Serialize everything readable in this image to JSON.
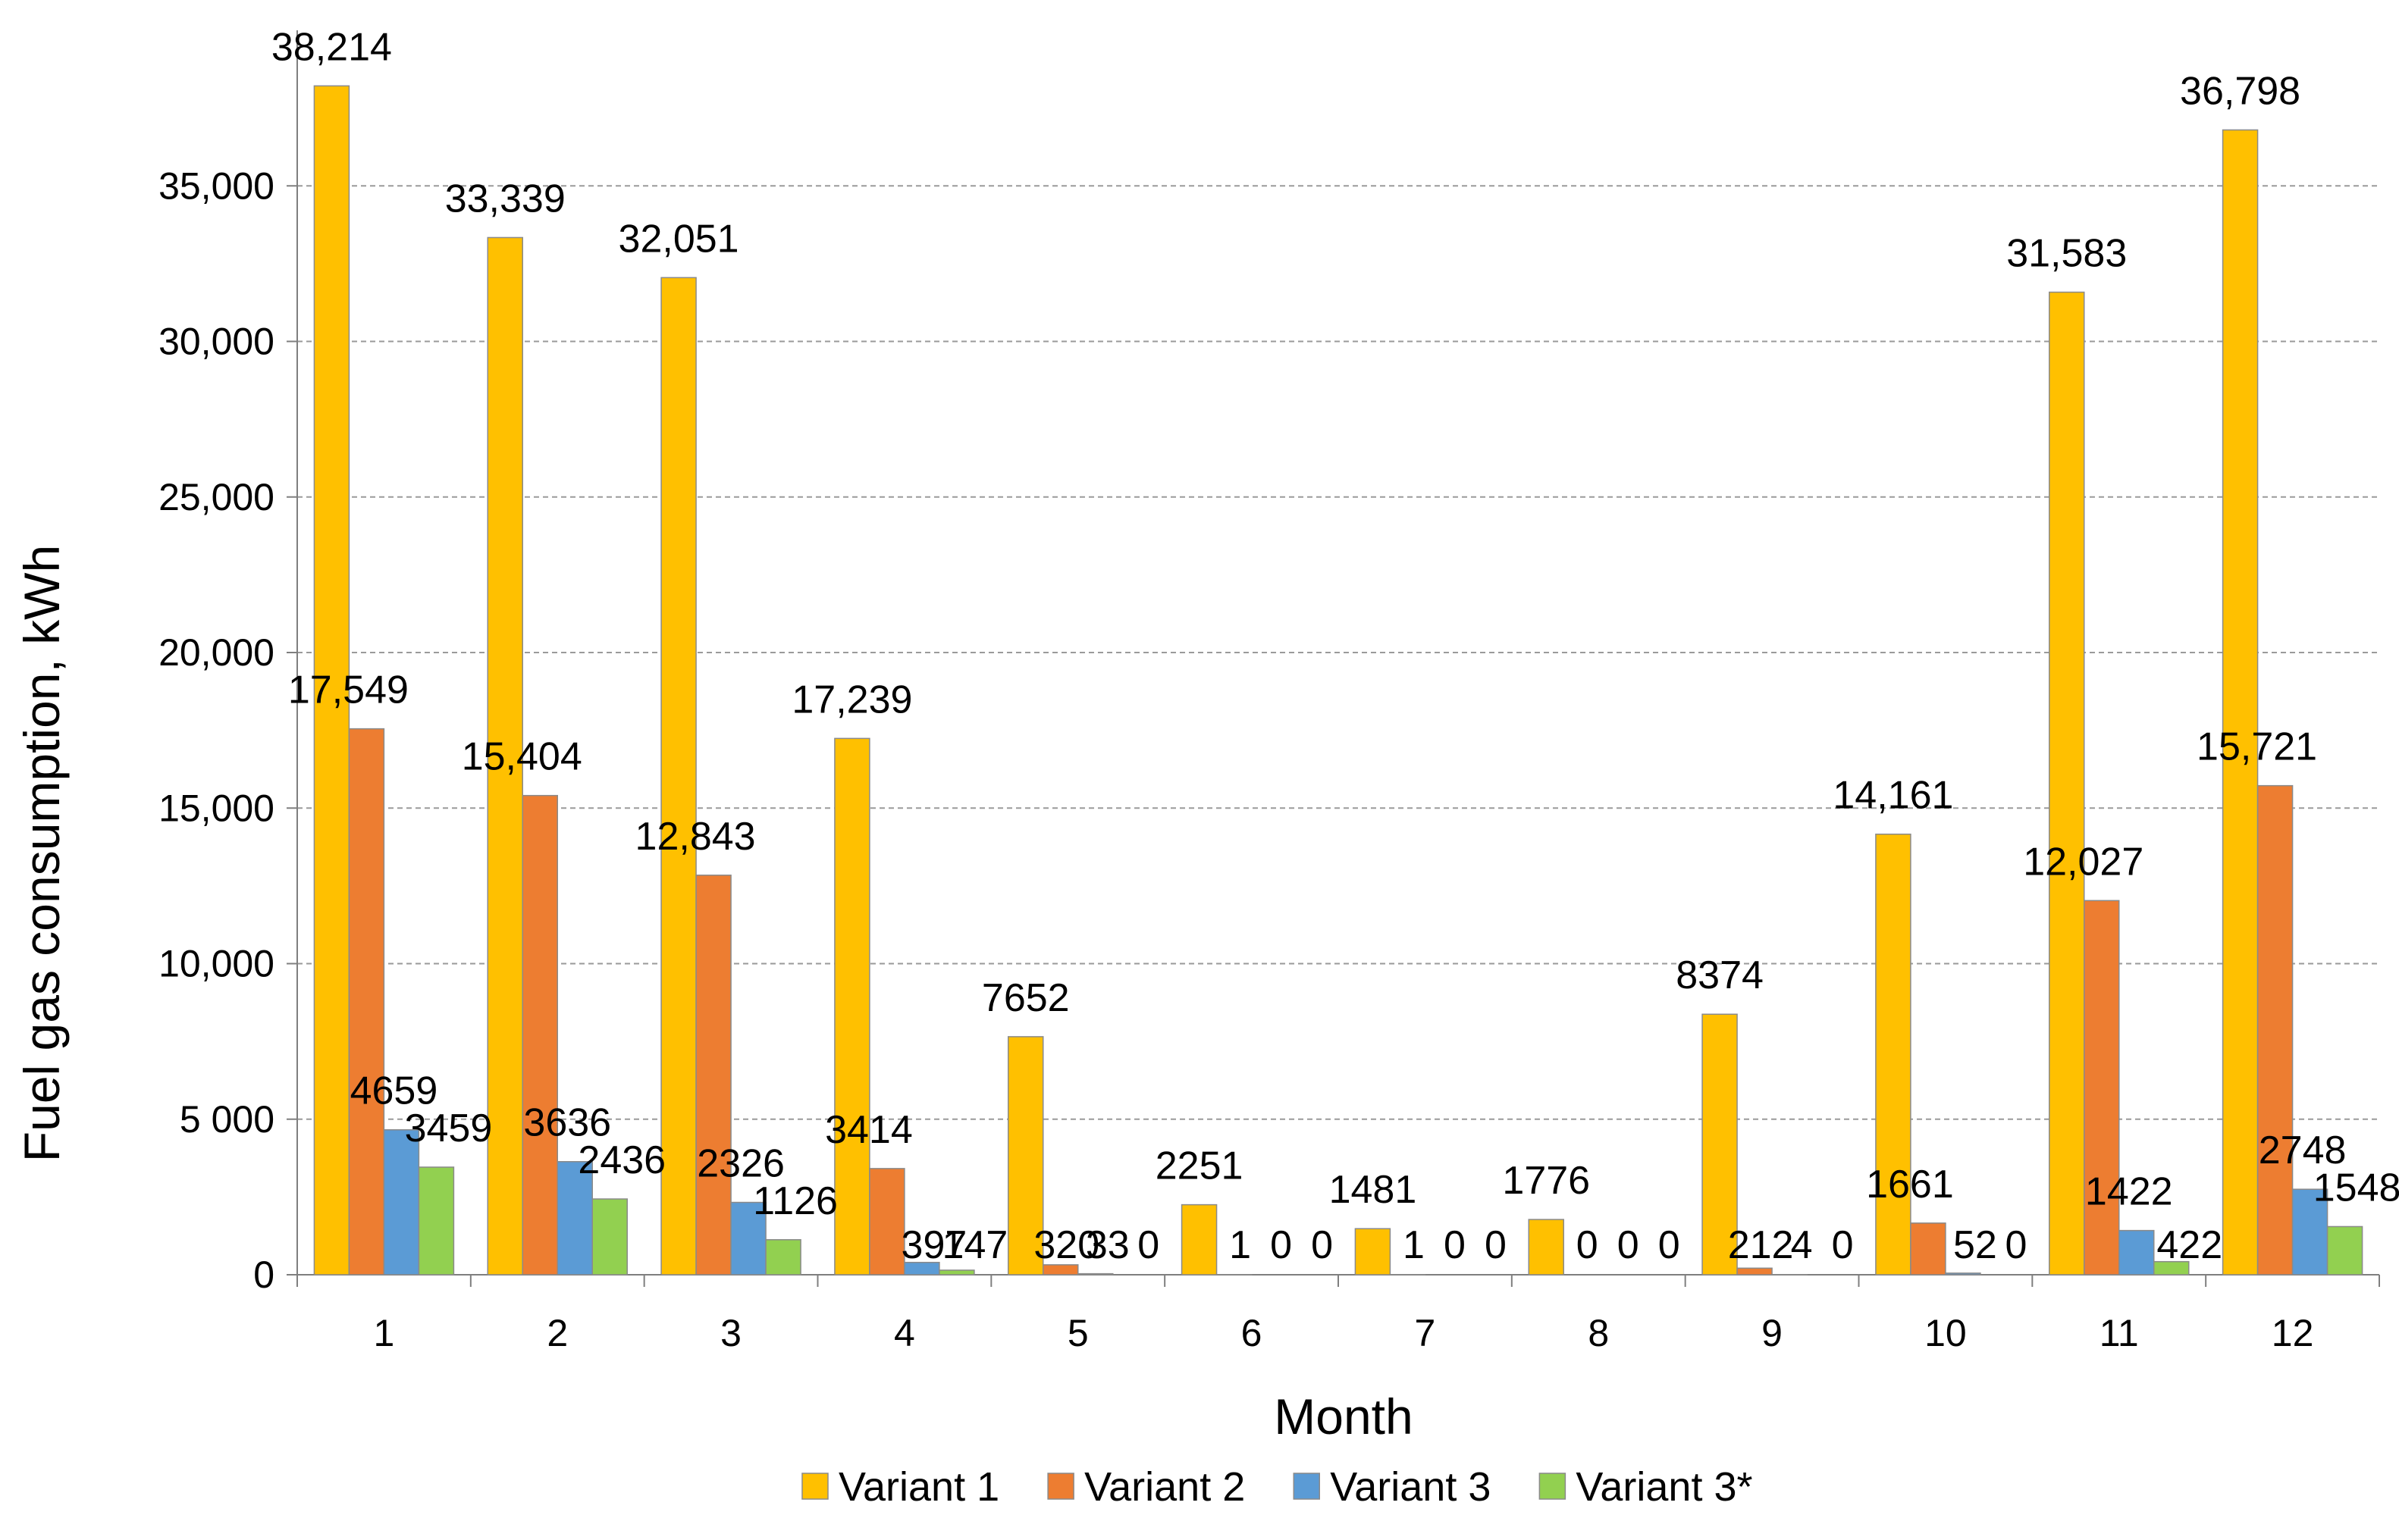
{
  "chart_data": {
    "type": "bar",
    "title": "",
    "xlabel": "Month",
    "ylabel": "Fuel gas consumption, kWh",
    "ylim": [
      0,
      40000
    ],
    "yticks": [
      0,
      5000,
      10000,
      15000,
      20000,
      25000,
      30000,
      35000
    ],
    "ytick_labels": [
      "0",
      "5 000",
      "10,000",
      "15,000",
      "20,000",
      "25,000",
      "30,000",
      "35,000"
    ],
    "grid": true,
    "legend_position": "bottom",
    "categories": [
      "1",
      "2",
      "3",
      "4",
      "5",
      "6",
      "7",
      "8",
      "9",
      "10",
      "11",
      "12"
    ],
    "series": [
      {
        "name": "Variant 1",
        "color": "#FFC000",
        "values": [
          38214,
          33339,
          32051,
          17239,
          7652,
          2251,
          1481,
          1776,
          8374,
          14161,
          31583,
          36798
        ],
        "labels": [
          "38,214",
          "33,339",
          "32,051",
          "17,239",
          "7652",
          "2251",
          "1481",
          "1776",
          "8374",
          "14,161",
          "31,583",
          "36,798"
        ]
      },
      {
        "name": "Variant 2",
        "color": "#ED7D31",
        "values": [
          17549,
          15404,
          12843,
          3414,
          320,
          1,
          1,
          0,
          212,
          1661,
          12027,
          15721
        ],
        "labels": [
          "17,549",
          "15,404",
          "12,843",
          "3414",
          "320",
          "1",
          "1",
          "0",
          "212",
          "1661",
          "12,027",
          "15,721"
        ]
      },
      {
        "name": "Variant 3",
        "color": "#5B9BD5",
        "values": [
          4659,
          3636,
          2326,
          397,
          33,
          0,
          0,
          0,
          4,
          52,
          1422,
          2748
        ],
        "labels": [
          "4659",
          "3636",
          "2326",
          "397",
          "33",
          "0",
          "0",
          "0",
          "4",
          "52",
          "1422",
          "2748"
        ]
      },
      {
        "name": "Variant 3*",
        "color": "#92D050",
        "values": [
          3459,
          2436,
          1126,
          147,
          0,
          0,
          0,
          0,
          0,
          0,
          422,
          1548
        ],
        "labels": [
          "3459",
          "2436",
          "1126",
          "147",
          "0",
          "0",
          "0",
          "0",
          "0",
          "0",
          "422",
          "1548"
        ]
      }
    ]
  }
}
